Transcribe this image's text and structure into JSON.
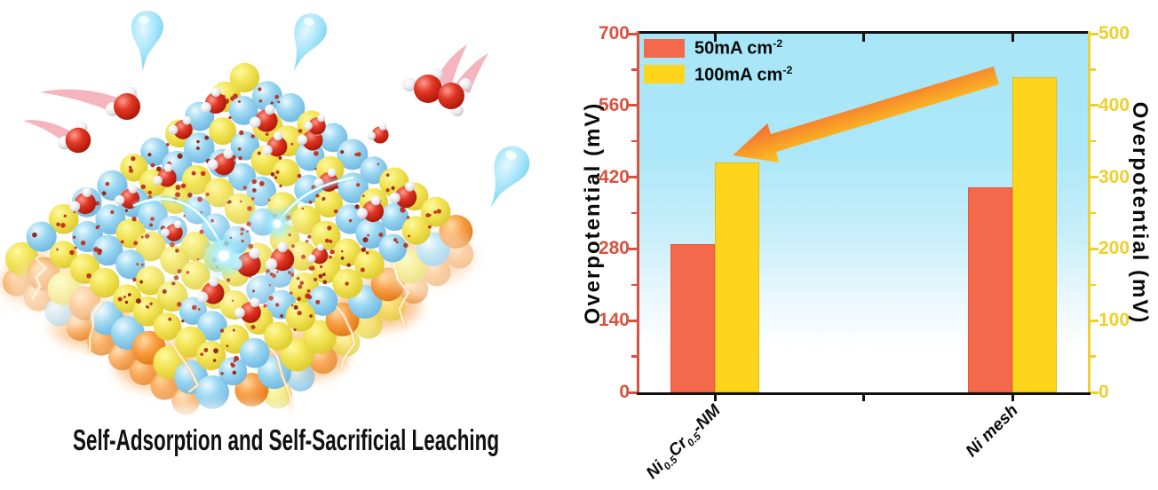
{
  "figure": {
    "caption": "Self-Adsorption and Self-Sacrificial Leaching"
  },
  "illustration": {
    "description": "3D lattice slab of yellow and cyan atom spheres dotted with red oxide particles; red-and-white water molecules adsorb onto the surface with pink motion trails, light-blue water droplets fall, cyan sparks and orange lightning mark self-sacrificial leaching at the glowing orange bottom edge",
    "colors": {
      "sphere_yellow": "#F3E557",
      "sphere_cyan": "#9AD7F2",
      "sphere_orange": "#F79A3E",
      "oxygen_red": "#D8251A",
      "hydrogen_white": "#EEEEF2",
      "droplet_blue": "#A9E6FA",
      "trail_pink": "#F3A8B3",
      "spark_cyan": "#5FD8F8"
    }
  },
  "chart_data": {
    "type": "bar",
    "categories": [
      "Ni0.5Cr0.5-NM",
      "Ni mesh"
    ],
    "series": [
      {
        "name": "50mA cm-2",
        "axis": "left",
        "color": "#F4684B",
        "values": [
          290,
          400
        ]
      },
      {
        "name": "100mA cm-2",
        "axis": "right",
        "color": "#FFD51C",
        "values": [
          320,
          440
        ]
      }
    ],
    "left_axis": {
      "title": "Overpotential (mV)",
      "min": 0,
      "max": 700,
      "ticks_top_to_bottom": [
        "700",
        "560",
        "420",
        "280",
        "140",
        "0"
      ],
      "color": "#D9523F"
    },
    "right_axis": {
      "title": "Overpotential (mV)",
      "min": 0,
      "max": 500,
      "ticks_top_to_bottom": [
        "500",
        "400",
        "300",
        "200",
        "100",
        "0"
      ],
      "color": "#EFCF2C"
    },
    "legend": [
      {
        "text": "50mA cm",
        "sup": "-2"
      },
      {
        "text": "100mA cm",
        "sup": "-2"
      }
    ],
    "x_labels": [
      {
        "parts": [
          {
            "t": "Ni"
          },
          {
            "sub": "0.5"
          },
          {
            "t": "Cr"
          },
          {
            "sub": "0.5"
          },
          {
            "t": "-NM"
          }
        ]
      },
      {
        "parts": [
          {
            "t": "Ni mesh"
          }
        ]
      }
    ],
    "plot_bg_top": "#A7E6F8",
    "grid": false,
    "legend_position": "top-left",
    "annotations": [
      {
        "type": "arrow",
        "from_category": "Ni mesh",
        "to_category": "Ni0.5Cr0.5-NM",
        "gradient": [
          "#F25A38",
          "#FFD41C"
        ],
        "meaning": "overpotential decrease toward Ni0.5Cr0.5-NM"
      }
    ]
  }
}
